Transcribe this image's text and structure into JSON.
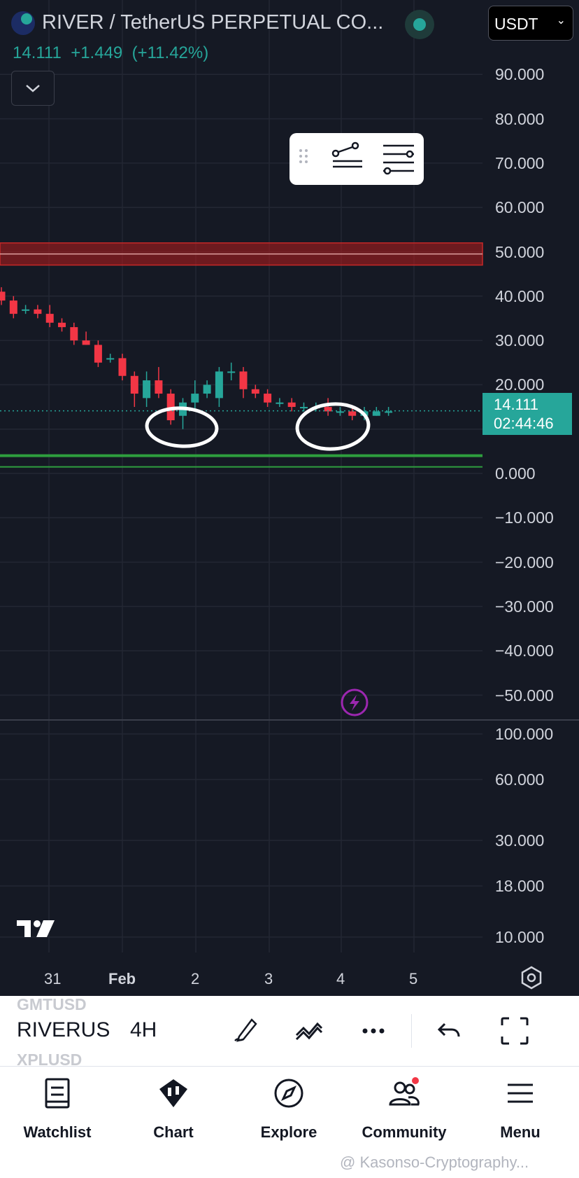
{
  "header": {
    "symbol_title": "RIVER / TetherUS PERPETUAL CO...",
    "price": "14.111",
    "change": "+1.449",
    "change_pct": "(+11.42%)",
    "currency": "USDT",
    "status_color": "#26a69a"
  },
  "price_axis": {
    "labels": [
      "90.000",
      "80.000",
      "70.000",
      "60.000",
      "50.000",
      "40.000",
      "30.000",
      "20.000",
      "0.000",
      "−10.000",
      "−20.000",
      "−30.000",
      "−40.000",
      "−50.000"
    ],
    "current_price": "14.111",
    "countdown": "02:44:46"
  },
  "indicator_axis": {
    "labels": [
      "100.000",
      "60.000",
      "30.000",
      "18.000",
      "10.000"
    ]
  },
  "time_axis": {
    "labels": [
      "31",
      "Feb",
      "2",
      "3",
      "4",
      "5"
    ]
  },
  "chart_data": {
    "type": "candlestick",
    "timeframe": "4H",
    "colors": {
      "up": "#26a69a",
      "down": "#f23645",
      "resistance_zone": "#b71c1c",
      "support_line": "#2e9e3e"
    },
    "resistance_zone": [
      47,
      52
    ],
    "support_line": 4,
    "candles": [
      {
        "o": 41,
        "h": 42,
        "l": 38,
        "c": 39
      },
      {
        "o": 39,
        "h": 40,
        "l": 35,
        "c": 36
      },
      {
        "o": 37,
        "h": 38,
        "l": 36,
        "c": 37
      },
      {
        "o": 37,
        "h": 38,
        "l": 35,
        "c": 36
      },
      {
        "o": 36,
        "h": 38,
        "l": 33,
        "c": 34
      },
      {
        "o": 34,
        "h": 35,
        "l": 32,
        "c": 33
      },
      {
        "o": 33,
        "h": 34,
        "l": 29,
        "c": 30
      },
      {
        "o": 30,
        "h": 32,
        "l": 29,
        "c": 29
      },
      {
        "o": 29,
        "h": 30,
        "l": 24,
        "c": 25
      },
      {
        "o": 26,
        "h": 27,
        "l": 25,
        "c": 26
      },
      {
        "o": 26,
        "h": 27,
        "l": 21,
        "c": 22
      },
      {
        "o": 22,
        "h": 23,
        "l": 15,
        "c": 18
      },
      {
        "o": 17,
        "h": 23,
        "l": 15,
        "c": 21
      },
      {
        "o": 21,
        "h": 24,
        "l": 17,
        "c": 18
      },
      {
        "o": 18,
        "h": 19,
        "l": 11,
        "c": 12
      },
      {
        "o": 13,
        "h": 17,
        "l": 10,
        "c": 16
      },
      {
        "o": 16,
        "h": 21,
        "l": 14,
        "c": 18
      },
      {
        "o": 18,
        "h": 21,
        "l": 17,
        "c": 20
      },
      {
        "o": 17,
        "h": 24,
        "l": 15,
        "c": 23
      },
      {
        "o": 23,
        "h": 25,
        "l": 21,
        "c": 23
      },
      {
        "o": 23,
        "h": 24,
        "l": 17,
        "c": 19
      },
      {
        "o": 19,
        "h": 20,
        "l": 17,
        "c": 18
      },
      {
        "o": 18,
        "h": 19,
        "l": 15,
        "c": 16
      },
      {
        "o": 16,
        "h": 17,
        "l": 15,
        "c": 16
      },
      {
        "o": 16,
        "h": 17,
        "l": 14,
        "c": 15
      },
      {
        "o": 15,
        "h": 16,
        "l": 14,
        "c": 15
      },
      {
        "o": 15,
        "h": 16,
        "l": 14,
        "c": 15
      },
      {
        "o": 15,
        "h": 17,
        "l": 13,
        "c": 14
      },
      {
        "o": 14,
        "h": 15,
        "l": 13,
        "c": 14
      },
      {
        "o": 14,
        "h": 15,
        "l": 12,
        "c": 13
      },
      {
        "o": 13,
        "h": 15,
        "l": 12,
        "c": 14
      },
      {
        "o": 13,
        "h": 15,
        "l": 13,
        "c": 14
      },
      {
        "o": 14,
        "h": 15,
        "l": 13,
        "c": 14
      }
    ]
  },
  "drawing_toolbar": {
    "icons": [
      "drag-handle-icon",
      "line-settings-icon",
      "list-settings-icon"
    ]
  },
  "bottom_bar": {
    "symbol_above": "GMTUSD",
    "symbol": "RIVERUS",
    "symbol_below": "XPLUSD",
    "timeframe": "4H",
    "icons": [
      "draw-icon",
      "indicators-icon",
      "more-icon",
      "undo-icon",
      "fullscreen-icon"
    ]
  },
  "tabs": [
    {
      "label": "Watchlist",
      "icon": "watchlist-icon"
    },
    {
      "label": "Chart",
      "icon": "chart-icon"
    },
    {
      "label": "Explore",
      "icon": "compass-icon"
    },
    {
      "label": "Community",
      "icon": "community-icon"
    },
    {
      "label": "Menu",
      "icon": "menu-icon"
    }
  ],
  "watermark": "@ Kasonso-Cryptography..."
}
